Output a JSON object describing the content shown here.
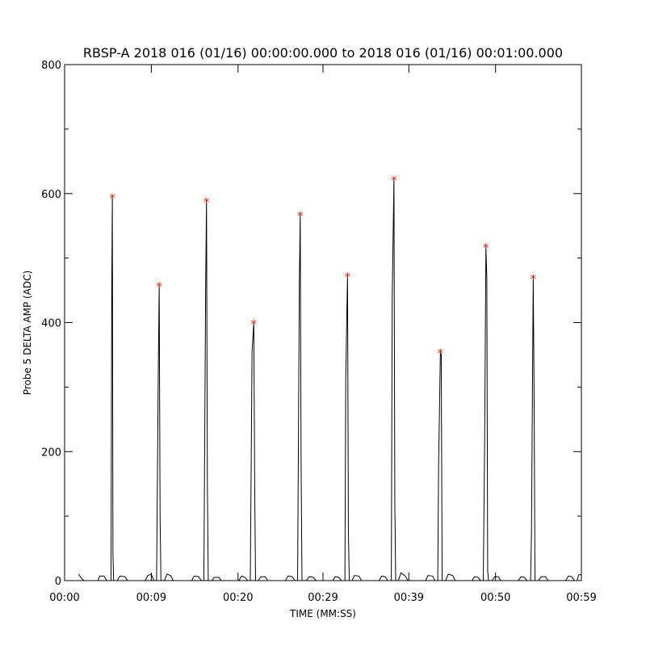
{
  "chart_data": {
    "type": "line",
    "title": "RBSP-A 2018 016 (01/16) 00:00:00.000 to 2018 016 (01/16) 00:01:00.000",
    "xlabel": "TIME (MM:SS)",
    "ylabel": "Probe 5 DELTA AMP (ADC)",
    "xlim": [
      0,
      59
    ],
    "ylim": [
      0,
      800
    ],
    "x_tick_labels": [
      "00:00",
      "00:09",
      "00:20",
      "00:29",
      "00:39",
      "00:50",
      "00:59"
    ],
    "x_tick_values": [
      0,
      9.9,
      19.8,
      29.5,
      39.3,
      49.2,
      59
    ],
    "y_tick_values": [
      0,
      200,
      400,
      600,
      800
    ],
    "y_tick_labels": [
      "0",
      "200",
      "400",
      "600",
      "800"
    ],
    "series": [
      {
        "points": [
          [
            1.6,
            10
          ],
          [
            1.9,
            4
          ],
          [
            2.2,
            0
          ],
          [
            3.8,
            0
          ],
          [
            4.0,
            7
          ],
          [
            4.5,
            7
          ],
          [
            4.8,
            0
          ],
          [
            5.3,
            0
          ],
          [
            5.38,
            440
          ],
          [
            5.45,
            595
          ],
          [
            5.52,
            40
          ],
          [
            5.6,
            0
          ],
          [
            6.0,
            0
          ],
          [
            6.3,
            7
          ],
          [
            6.9,
            6
          ],
          [
            7.2,
            0
          ],
          [
            9.2,
            0
          ],
          [
            9.5,
            8
          ],
          [
            9.9,
            10
          ],
          [
            10.2,
            0
          ],
          [
            10.5,
            0
          ],
          [
            10.7,
            330
          ],
          [
            10.8,
            458
          ],
          [
            10.9,
            100
          ],
          [
            11.0,
            0
          ],
          [
            11.4,
            0
          ],
          [
            11.7,
            10
          ],
          [
            12.1,
            8
          ],
          [
            12.4,
            0
          ],
          [
            14.5,
            0
          ],
          [
            14.8,
            7
          ],
          [
            15.3,
            6
          ],
          [
            15.6,
            0
          ],
          [
            15.9,
            0
          ],
          [
            16.1,
            450
          ],
          [
            16.2,
            589
          ],
          [
            16.3,
            150
          ],
          [
            16.4,
            0
          ],
          [
            16.8,
            0
          ],
          [
            17.1,
            5
          ],
          [
            17.6,
            5
          ],
          [
            17.9,
            0
          ],
          [
            19.9,
            0
          ],
          [
            20.2,
            7
          ],
          [
            20.6,
            5
          ],
          [
            20.9,
            0
          ],
          [
            21.2,
            0
          ],
          [
            21.4,
            355
          ],
          [
            21.6,
            400
          ],
          [
            21.7,
            150
          ],
          [
            21.8,
            0
          ],
          [
            22.1,
            0
          ],
          [
            22.4,
            6
          ],
          [
            22.9,
            6
          ],
          [
            23.2,
            0
          ],
          [
            25.2,
            0
          ],
          [
            25.5,
            7
          ],
          [
            26.0,
            6
          ],
          [
            26.3,
            0
          ],
          [
            26.6,
            0
          ],
          [
            26.8,
            460
          ],
          [
            26.9,
            568
          ],
          [
            27.0,
            180
          ],
          [
            27.1,
            0
          ],
          [
            27.6,
            0
          ],
          [
            27.9,
            6
          ],
          [
            28.4,
            5
          ],
          [
            28.7,
            0
          ],
          [
            30.6,
            0
          ],
          [
            30.9,
            6
          ],
          [
            31.3,
            5
          ],
          [
            31.6,
            0
          ],
          [
            32.0,
            0
          ],
          [
            32.1,
            315
          ],
          [
            32.3,
            473
          ],
          [
            32.4,
            75
          ],
          [
            32.5,
            0
          ],
          [
            32.8,
            0
          ],
          [
            33.1,
            8
          ],
          [
            33.6,
            7
          ],
          [
            33.9,
            0
          ],
          [
            35.9,
            0
          ],
          [
            36.2,
            7
          ],
          [
            36.6,
            6
          ],
          [
            36.9,
            0
          ],
          [
            37.3,
            0
          ],
          [
            37.4,
            435
          ],
          [
            37.6,
            623
          ],
          [
            37.7,
            120
          ],
          [
            37.8,
            0
          ],
          [
            38.1,
            0
          ],
          [
            38.4,
            12
          ],
          [
            38.9,
            7
          ],
          [
            39.2,
            0
          ],
          [
            41.2,
            0
          ],
          [
            41.5,
            8
          ],
          [
            42.0,
            7
          ],
          [
            42.3,
            0
          ],
          [
            42.6,
            0
          ],
          [
            42.7,
            180
          ],
          [
            42.9,
            355
          ],
          [
            43.0,
            350
          ],
          [
            43.1,
            0
          ],
          [
            43.5,
            0
          ],
          [
            43.8,
            10
          ],
          [
            44.3,
            8
          ],
          [
            44.6,
            0
          ],
          [
            46.5,
            0
          ],
          [
            46.8,
            6
          ],
          [
            47.2,
            5
          ],
          [
            47.5,
            0
          ],
          [
            47.8,
            0
          ],
          [
            47.95,
            210
          ],
          [
            48.1,
            518
          ],
          [
            48.2,
            470
          ],
          [
            48.3,
            15
          ],
          [
            48.4,
            0
          ],
          [
            48.8,
            0
          ],
          [
            49.1,
            6
          ],
          [
            49.5,
            6
          ],
          [
            49.8,
            0
          ],
          [
            51.8,
            0
          ],
          [
            52.1,
            6
          ],
          [
            52.5,
            5
          ],
          [
            52.8,
            0
          ],
          [
            53.2,
            0
          ],
          [
            53.3,
            75
          ],
          [
            53.5,
            470
          ],
          [
            53.6,
            290
          ],
          [
            53.7,
            0
          ],
          [
            54.1,
            0
          ],
          [
            54.4,
            6
          ],
          [
            54.9,
            6
          ],
          [
            55.2,
            0
          ],
          [
            57.2,
            0
          ],
          [
            57.5,
            7
          ],
          [
            57.9,
            6
          ],
          [
            58.2,
            0
          ],
          [
            58.5,
            0
          ],
          [
            58.7,
            9
          ],
          [
            59.0,
            9
          ]
        ]
      }
    ],
    "peaks": [
      {
        "x": 5.45,
        "y": 595
      },
      {
        "x": 10.8,
        "y": 458
      },
      {
        "x": 16.2,
        "y": 589
      },
      {
        "x": 21.6,
        "y": 400
      },
      {
        "x": 26.9,
        "y": 568
      },
      {
        "x": 32.3,
        "y": 473
      },
      {
        "x": 37.6,
        "y": 623
      },
      {
        "x": 42.9,
        "y": 355
      },
      {
        "x": 48.1,
        "y": 518
      },
      {
        "x": 53.5,
        "y": 470
      }
    ],
    "peak_marker_symbol": "*",
    "colors": {
      "line": "#000000",
      "peak_marker": "#e0200a",
      "axes": "#000000"
    },
    "grid": false
  }
}
